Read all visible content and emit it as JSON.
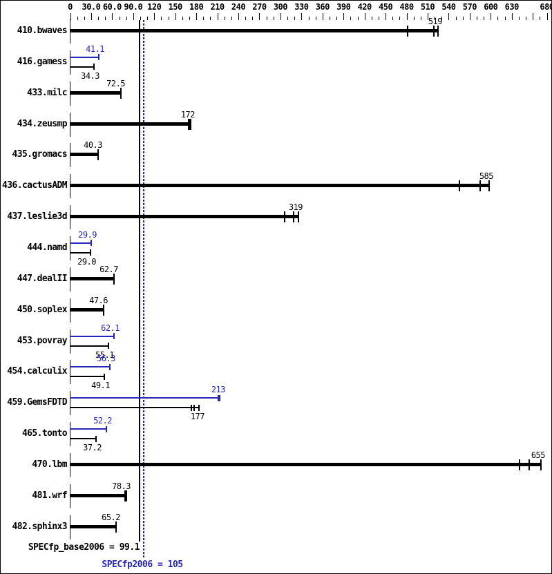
{
  "colors": {
    "base": "#000000",
    "peak": "#2626b8",
    "background": "#ffffff",
    "border": "#000000"
  },
  "footer": {
    "base_label": "SPECfp_base2006 = 99.1",
    "peak_label": "SPECfp2006 = 105",
    "base_value": 99.1,
    "peak_value": 105
  },
  "chart_data": {
    "type": "bar",
    "orientation": "horizontal",
    "title": "",
    "xlabel": "",
    "ylabel": "",
    "xlim": [
      0,
      680
    ],
    "grid": false,
    "axis": {
      "min": 0,
      "max": 680,
      "minor_step": 10,
      "major_step": 30,
      "labels": [
        {
          "value": 0,
          "text": "0"
        },
        {
          "value": 30,
          "text": "30.0"
        },
        {
          "value": 60,
          "text": "60.0"
        },
        {
          "value": 90,
          "text": "90.0"
        },
        {
          "value": 120,
          "text": "120"
        },
        {
          "value": 150,
          "text": "150"
        },
        {
          "value": 180,
          "text": "180"
        },
        {
          "value": 210,
          "text": "210"
        },
        {
          "value": 240,
          "text": "240"
        },
        {
          "value": 270,
          "text": "270"
        },
        {
          "value": 300,
          "text": "300"
        },
        {
          "value": 330,
          "text": "330"
        },
        {
          "value": 360,
          "text": "360"
        },
        {
          "value": 390,
          "text": "390"
        },
        {
          "value": 420,
          "text": "420"
        },
        {
          "value": 450,
          "text": "450"
        },
        {
          "value": 480,
          "text": "480"
        },
        {
          "value": 510,
          "text": "510"
        },
        {
          "value": 540,
          "text": "540"
        },
        {
          "value": 570,
          "text": "570"
        },
        {
          "value": 600,
          "text": "600"
        },
        {
          "value": 630,
          "text": "630"
        },
        {
          "value": 680,
          "text": "680"
        }
      ]
    },
    "reference_lines": [
      {
        "name": "SPECfp_base2006",
        "value": 99.1,
        "style": "solid",
        "color": "#000000"
      },
      {
        "name": "SPECfp2006",
        "value": 105,
        "style": "dotted",
        "color": "#2626b8"
      }
    ],
    "categories": [
      "410.bwaves",
      "416.gamess",
      "433.milc",
      "434.zeusmp",
      "435.gromacs",
      "436.cactusADM",
      "437.leslie3d",
      "444.namd",
      "447.dealII",
      "450.soplex",
      "453.povray",
      "454.calculix",
      "459.GemsFDTD",
      "465.tonto",
      "470.lbm",
      "481.wrf",
      "482.sphinx3"
    ],
    "series": [
      {
        "name": "peak (SPECfp2006)",
        "color": "#2626b8",
        "values": [
          null,
          41.1,
          null,
          null,
          null,
          null,
          null,
          29.9,
          null,
          null,
          62.1,
          56.3,
          213,
          52.2,
          null,
          null,
          null
        ]
      },
      {
        "name": "base (SPECfp_base2006)",
        "color": "#000000",
        "values": [
          519,
          34.3,
          72.5,
          172,
          40.3,
          585,
          319,
          29.0,
          62.7,
          47.6,
          55.1,
          49.1,
          177,
          37.2,
          655,
          78.3,
          65.2
        ]
      }
    ],
    "rows": [
      {
        "label": "410.bwaves",
        "base": 519,
        "base_display": "519",
        "base_runs": [
          481,
          519,
          525
        ]
      },
      {
        "label": "416.gamess",
        "peak": 41.1,
        "peak_display": "41.1",
        "base": 34.3,
        "base_display": "34.3"
      },
      {
        "label": "433.milc",
        "base": 72.5,
        "base_display": "72.5"
      },
      {
        "label": "434.zeusmp",
        "base": 172,
        "base_display": "172",
        "base_runs": [
          169,
          171,
          172
        ]
      },
      {
        "label": "435.gromacs",
        "base": 40.3,
        "base_display": "40.3"
      },
      {
        "label": "436.cactusADM",
        "base": 585,
        "base_display": "585",
        "base_runs": [
          555,
          585,
          598
        ]
      },
      {
        "label": "437.leslie3d",
        "base": 319,
        "base_display": "319",
        "base_runs": [
          306,
          319,
          326
        ]
      },
      {
        "label": "444.namd",
        "peak": 29.9,
        "peak_display": "29.9",
        "base": 29.0,
        "base_display": "29.0"
      },
      {
        "label": "447.dealII",
        "base": 62.7,
        "base_display": "62.7"
      },
      {
        "label": "450.soplex",
        "base": 47.6,
        "base_display": "47.6"
      },
      {
        "label": "453.povray",
        "peak": 62.1,
        "peak_display": "62.1",
        "base": 55.1,
        "base_display": "55.1"
      },
      {
        "label": "454.calculix",
        "peak": 56.3,
        "peak_display": "56.3",
        "base": 49.1,
        "base_display": "49.1"
      },
      {
        "label": "459.GemsFDTD",
        "peak": 213,
        "peak_display": "213",
        "peak_runs": [
          211,
          213
        ],
        "base": 177,
        "base_display": "177",
        "base_runs": [
          173,
          177,
          184
        ]
      },
      {
        "label": "465.tonto",
        "peak": 52.2,
        "peak_display": "52.2",
        "base": 37.2,
        "base_display": "37.2"
      },
      {
        "label": "470.lbm",
        "base": 655,
        "base_display": "655",
        "base_runs": [
          641,
          655,
          672
        ]
      },
      {
        "label": "481.wrf",
        "base": 78.3,
        "base_display": "78.3",
        "base_runs": [
          78.3,
          80
        ]
      },
      {
        "label": "482.sphinx3",
        "base": 65.2,
        "base_display": "65.2"
      }
    ]
  }
}
